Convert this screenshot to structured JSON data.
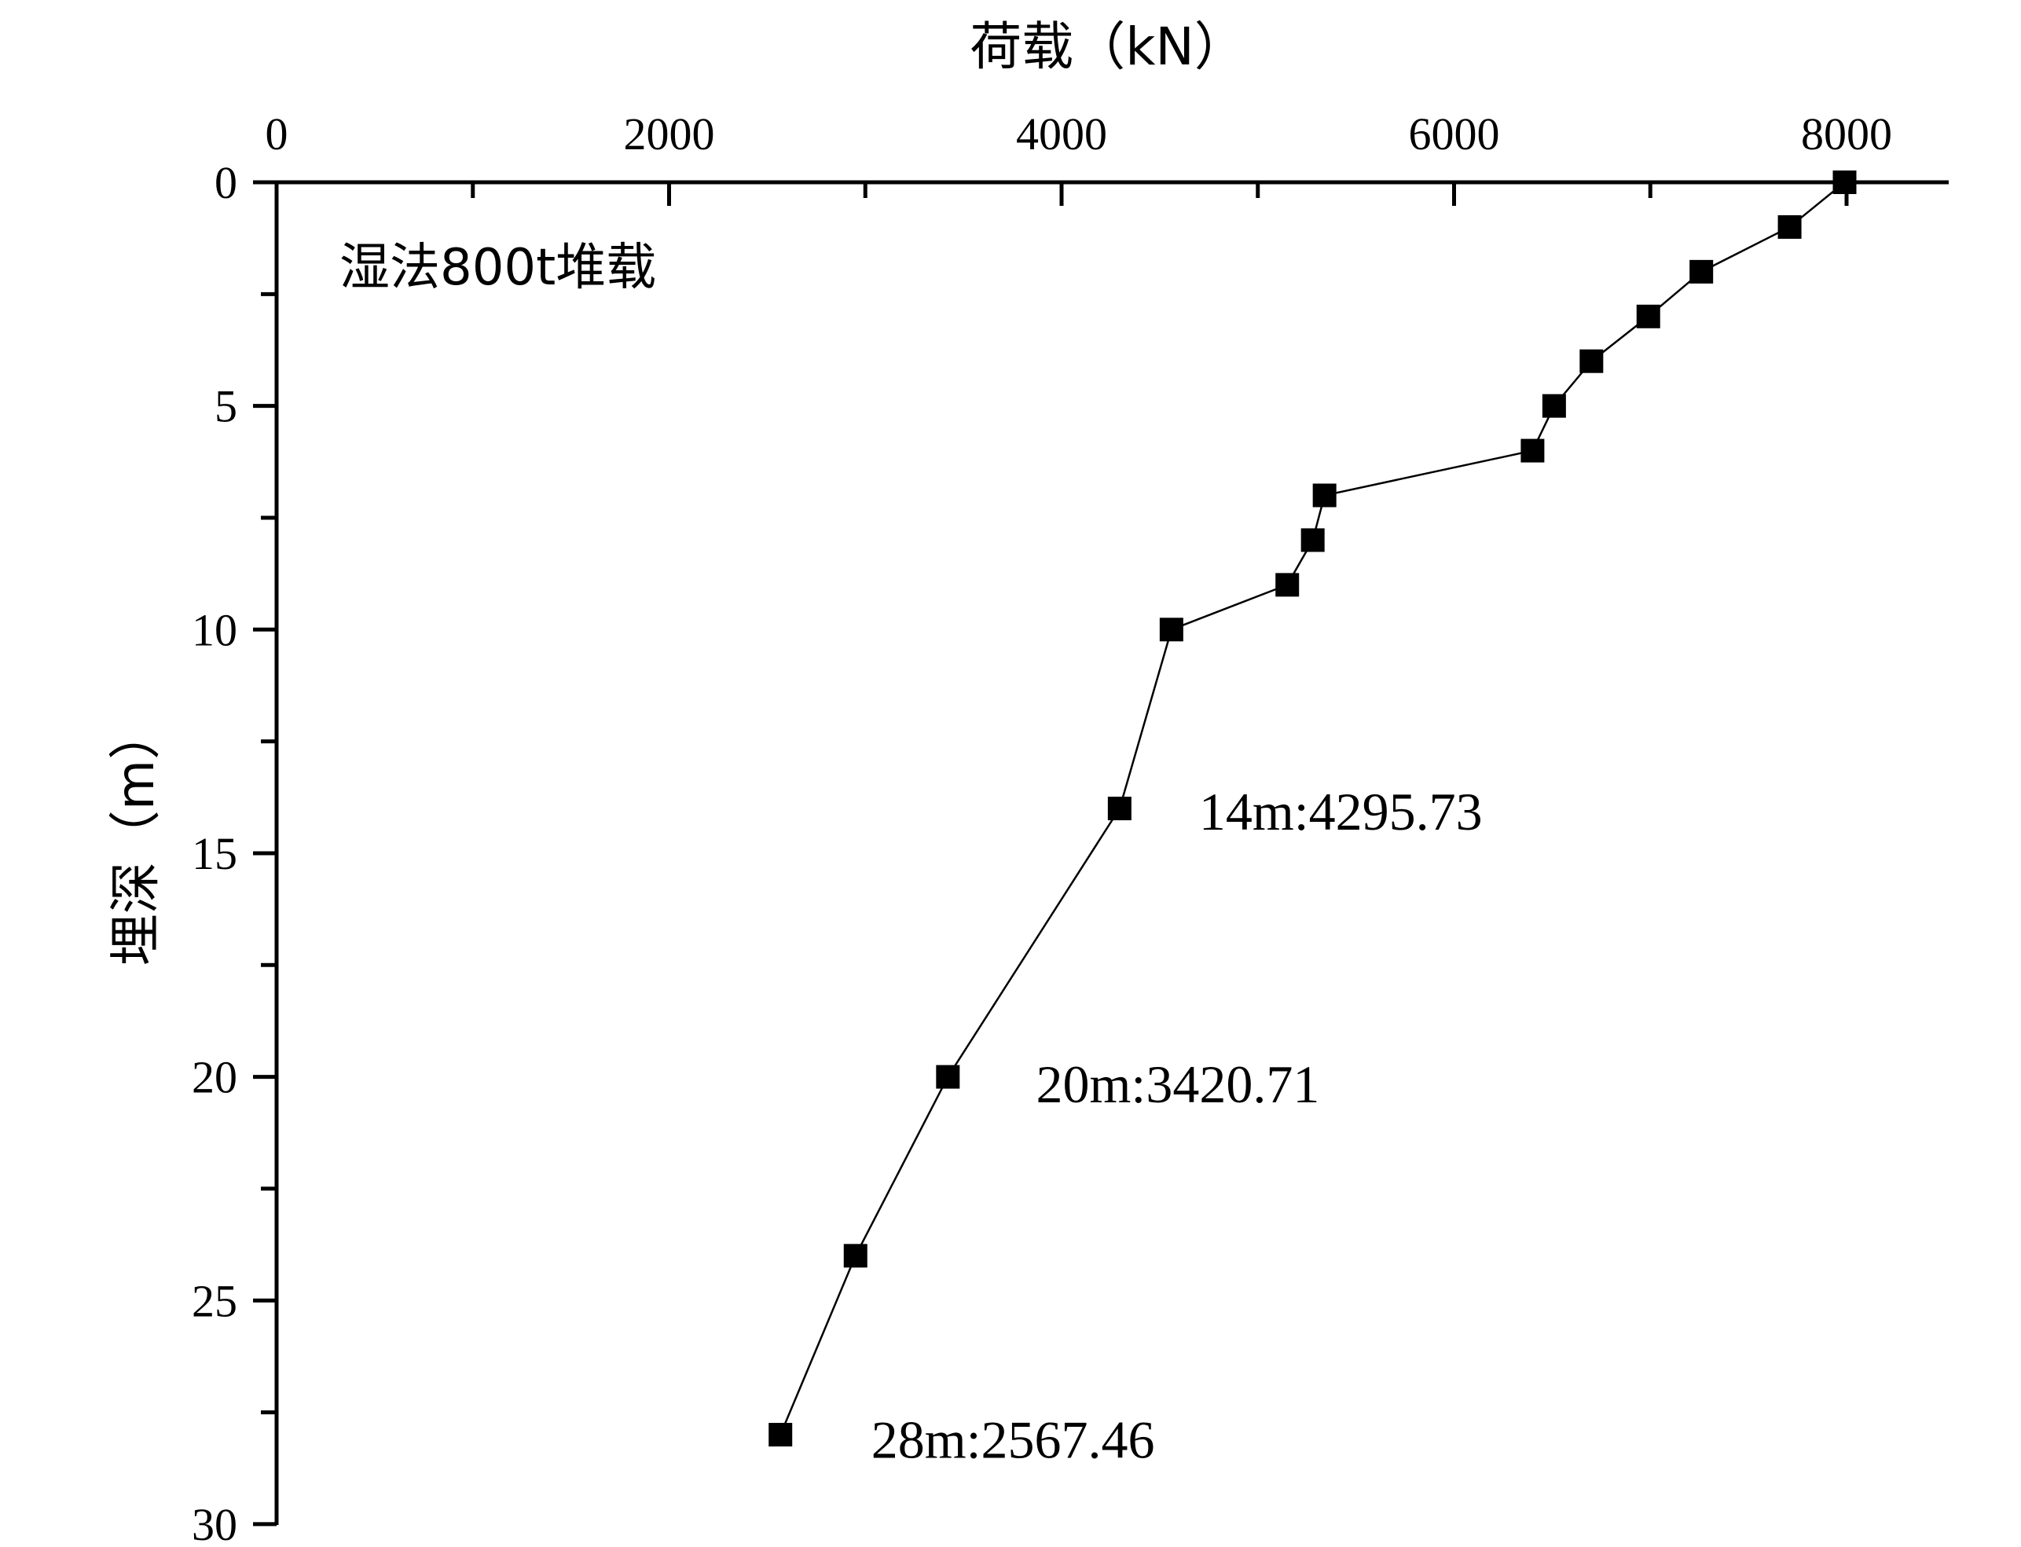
{
  "chart_data": {
    "type": "line",
    "xlabel": "荷载（kN）",
    "ylabel": "埋深（m）",
    "xlim": [
      0,
      8500
    ],
    "ylim": [
      0,
      30
    ],
    "x_ticks": [
      "0",
      "2000",
      "4000",
      "6000",
      "8000"
    ],
    "y_ticks": [
      "0",
      "5",
      "10",
      "15",
      "20",
      "25",
      "30"
    ],
    "x_axis_position": "top",
    "y_axis_inverted": true,
    "grid": false,
    "label": "湿法800t堆载",
    "series": [
      {
        "marker": "square",
        "color": "#000000",
        "x": [
          7990,
          7710,
          7260,
          6990,
          6700,
          6510,
          6400,
          5340,
          5280,
          5150,
          4560,
          4295.73,
          3420.71,
          2950,
          2567.46
        ],
        "y": [
          0,
          1,
          2,
          3,
          4,
          5,
          6,
          7,
          8,
          9,
          10,
          14,
          20,
          24,
          28
        ]
      }
    ],
    "annotations": [
      {
        "text": "14m:4295.73",
        "x": 4700,
        "y": 14.05
      },
      {
        "text": "20m:3420.71",
        "x": 3870,
        "y": 20.15
      },
      {
        "text": "28m:2567.46",
        "x": 3030,
        "y": 28.1
      }
    ]
  }
}
